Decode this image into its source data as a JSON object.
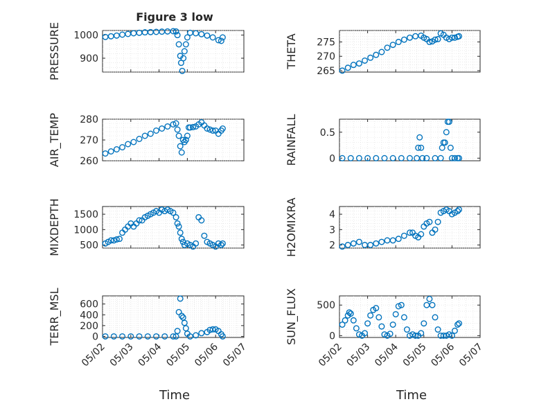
{
  "title": "Figure 3 low",
  "xlabel": "Time",
  "x_ticks": [
    "05/02",
    "05/03",
    "05/04",
    "05/05",
    "05/06",
    "05/07"
  ],
  "chart_data": [
    {
      "type": "scatter",
      "ylabel": "PRESSURE",
      "ylim": [
        840,
        1020
      ],
      "yticks": [
        900,
        1000
      ],
      "ytick_labels": [
        "900",
        "1000"
      ],
      "x": [
        2.1,
        2.3,
        2.5,
        2.7,
        2.9,
        3.1,
        3.3,
        3.5,
        3.7,
        3.9,
        4.1,
        4.3,
        4.5,
        4.6,
        4.65,
        4.7,
        4.75,
        4.78,
        4.82,
        4.86,
        4.9,
        4.95,
        5.0,
        5.1,
        5.3,
        5.5,
        5.7,
        5.9,
        6.1,
        6.2,
        6.25
      ],
      "y": [
        992,
        995,
        998,
        1002,
        1005,
        1008,
        1010,
        1012,
        1013,
        1014,
        1015,
        1016,
        1017,
        1016,
        1000,
        960,
        910,
        880,
        845,
        900,
        930,
        960,
        990,
        1010,
        1008,
        1004,
        998,
        990,
        978,
        975,
        990
      ],
      "marker_color": "#0072bd"
    },
    {
      "type": "scatter",
      "ylabel": "THETA",
      "ylim": [
        264.5,
        279
      ],
      "yticks": [
        265,
        270,
        275
      ],
      "ytick_labels": [
        "265",
        "270",
        "275"
      ],
      "x": [
        2.1,
        2.3,
        2.5,
        2.7,
        2.9,
        3.1,
        3.3,
        3.5,
        3.7,
        3.9,
        4.1,
        4.3,
        4.5,
        4.7,
        4.9,
        5.0,
        5.1,
        5.2,
        5.3,
        5.4,
        5.5,
        5.6,
        5.7,
        5.8,
        5.9,
        6.0,
        6.1,
        6.2,
        6.25
      ],
      "y": [
        265,
        266,
        267,
        267.5,
        268.5,
        269.5,
        270.5,
        271.5,
        273,
        274,
        275,
        275.8,
        276.5,
        277,
        277.2,
        276.5,
        276,
        275,
        275.2,
        275.8,
        276,
        278,
        277.5,
        276.5,
        276,
        276.5,
        276.5,
        276.8,
        277
      ],
      "marker_color": "#0072bd"
    },
    {
      "type": "scatter",
      "ylabel": "AIR_TEMP",
      "ylim": [
        260,
        280
      ],
      "yticks": [
        260,
        270,
        280
      ],
      "ytick_labels": [
        "260",
        "270",
        "280"
      ],
      "x": [
        2.1,
        2.3,
        2.5,
        2.7,
        2.9,
        3.1,
        3.3,
        3.5,
        3.7,
        3.9,
        4.1,
        4.3,
        4.5,
        4.6,
        4.65,
        4.7,
        4.75,
        4.8,
        4.85,
        4.9,
        4.95,
        5.0,
        5.05,
        5.1,
        5.2,
        5.3,
        5.4,
        5.5,
        5.6,
        5.7,
        5.8,
        5.9,
        6.0,
        6.1,
        6.2,
        6.25
      ],
      "y": [
        263.5,
        264.5,
        265.5,
        266.5,
        268,
        269,
        270.5,
        272,
        273,
        274.5,
        275.5,
        276.5,
        277.5,
        278,
        275,
        272,
        267,
        264,
        270,
        269,
        270,
        272,
        276,
        276,
        276.2,
        276.5,
        277.5,
        278.5,
        277,
        275.5,
        275,
        274.5,
        274.5,
        273,
        274.5,
        275.5
      ],
      "marker_color": "#0072bd"
    },
    {
      "type": "scatter",
      "ylabel": "RAINFALL",
      "ylim": [
        -0.05,
        0.75
      ],
      "yticks": [
        0,
        0.5
      ],
      "ytick_labels": [
        "0",
        "0.5"
      ],
      "x": [
        2.1,
        2.4,
        2.7,
        3.0,
        3.3,
        3.6,
        3.9,
        4.2,
        4.5,
        4.75,
        4.8,
        4.85,
        4.9,
        4.95,
        5.1,
        5.4,
        5.6,
        5.65,
        5.7,
        5.75,
        5.8,
        5.85,
        5.9,
        5.95,
        6.0,
        6.1,
        6.2,
        6.25
      ],
      "y": [
        0,
        0,
        0,
        0,
        0,
        0,
        0,
        0,
        0,
        0,
        0.2,
        0.4,
        0.2,
        0,
        0,
        0,
        0,
        0.2,
        0.3,
        0.3,
        0.5,
        0.7,
        0.7,
        0.2,
        0,
        0,
        0,
        0
      ],
      "marker_color": "#0072bd"
    },
    {
      "type": "scatter",
      "ylabel": "MIXDEPTH",
      "ylim": [
        400,
        1750
      ],
      "yticks": [
        500,
        1000,
        1500
      ],
      "ytick_labels": [
        "500",
        "1000",
        "1500"
      ],
      "x": [
        2.1,
        2.2,
        2.3,
        2.4,
        2.5,
        2.6,
        2.7,
        2.8,
        2.9,
        3.0,
        3.1,
        3.2,
        3.3,
        3.4,
        3.5,
        3.6,
        3.7,
        3.8,
        3.9,
        4.0,
        4.1,
        4.2,
        4.3,
        4.4,
        4.5,
        4.6,
        4.65,
        4.7,
        4.75,
        4.8,
        4.85,
        4.9,
        5.0,
        5.1,
        5.2,
        5.3,
        5.4,
        5.5,
        5.6,
        5.7,
        5.8,
        5.9,
        6.0,
        6.1,
        6.2,
        6.25
      ],
      "y": [
        550,
        600,
        650,
        650,
        680,
        700,
        900,
        1000,
        1100,
        1200,
        1100,
        1200,
        1300,
        1300,
        1400,
        1450,
        1500,
        1550,
        1600,
        1550,
        1650,
        1600,
        1650,
        1600,
        1550,
        1400,
        1200,
        1100,
        900,
        700,
        600,
        500,
        550,
        500,
        450,
        550,
        1400,
        1300,
        800,
        600,
        550,
        500,
        450,
        550,
        500,
        550
      ],
      "marker_color": "#0072bd"
    },
    {
      "type": "scatter",
      "ylabel": "H2OMIXRA",
      "ylim": [
        1.8,
        4.5
      ],
      "yticks": [
        2,
        3,
        4
      ],
      "ytick_labels": [
        "2",
        "3",
        "4"
      ],
      "x": [
        2.1,
        2.3,
        2.5,
        2.7,
        2.9,
        3.1,
        3.3,
        3.5,
        3.7,
        3.9,
        4.1,
        4.3,
        4.5,
        4.6,
        4.7,
        4.8,
        4.9,
        5.0,
        5.1,
        5.2,
        5.3,
        5.4,
        5.5,
        5.6,
        5.7,
        5.8,
        5.9,
        6.0,
        6.1,
        6.2,
        6.25
      ],
      "y": [
        1.9,
        2.0,
        2.1,
        2.2,
        2.0,
        2.0,
        2.1,
        2.2,
        2.3,
        2.3,
        2.4,
        2.6,
        2.8,
        2.8,
        2.6,
        2.5,
        2.7,
        3.2,
        3.4,
        3.5,
        2.8,
        3.0,
        3.5,
        4.1,
        4.2,
        4.3,
        4.2,
        4.0,
        4.1,
        4.2,
        4.3
      ],
      "marker_color": "#0072bd"
    },
    {
      "type": "scatter",
      "ylabel": "TERR_MSL",
      "ylim": [
        -20,
        750
      ],
      "yticks": [
        0,
        200,
        400,
        600
      ],
      "ytick_labels": [
        "0",
        "200",
        "400",
        "600"
      ],
      "x": [
        2.1,
        2.4,
        2.7,
        3.0,
        3.3,
        3.6,
        3.9,
        4.2,
        4.5,
        4.6,
        4.65,
        4.7,
        4.75,
        4.8,
        4.85,
        4.9,
        4.95,
        5.0,
        5.1,
        5.3,
        5.5,
        5.7,
        5.8,
        5.9,
        6.0,
        6.1,
        6.2,
        6.25
      ],
      "y": [
        0,
        0,
        0,
        0,
        0,
        0,
        0,
        0,
        0,
        0,
        100,
        450,
        700,
        380,
        350,
        250,
        150,
        50,
        0,
        20,
        60,
        80,
        120,
        130,
        130,
        100,
        40,
        0
      ],
      "marker_color": "#0072bd"
    },
    {
      "type": "scatter",
      "ylabel": "SUN_FLUX",
      "ylim": [
        -30,
        650
      ],
      "yticks": [
        0,
        500
      ],
      "ytick_labels": [
        "0",
        "500"
      ],
      "x": [
        2.1,
        2.2,
        2.3,
        2.35,
        2.4,
        2.5,
        2.6,
        2.7,
        2.8,
        2.9,
        3.0,
        3.1,
        3.2,
        3.3,
        3.4,
        3.5,
        3.6,
        3.7,
        3.8,
        3.9,
        4.0,
        4.1,
        4.2,
        4.3,
        4.4,
        4.5,
        4.6,
        4.7,
        4.8,
        4.9,
        5.0,
        5.1,
        5.2,
        5.3,
        5.4,
        5.5,
        5.6,
        5.7,
        5.8,
        5.9,
        6.0,
        6.1,
        6.2,
        6.25
      ],
      "y": [
        180,
        250,
        330,
        380,
        360,
        250,
        120,
        20,
        0,
        40,
        200,
        330,
        420,
        450,
        300,
        150,
        20,
        0,
        30,
        180,
        350,
        480,
        500,
        300,
        100,
        0,
        20,
        0,
        0,
        40,
        200,
        500,
        600,
        500,
        300,
        100,
        0,
        0,
        0,
        20,
        0,
        80,
        180,
        200
      ],
      "marker_color": "#0072bd"
    }
  ]
}
